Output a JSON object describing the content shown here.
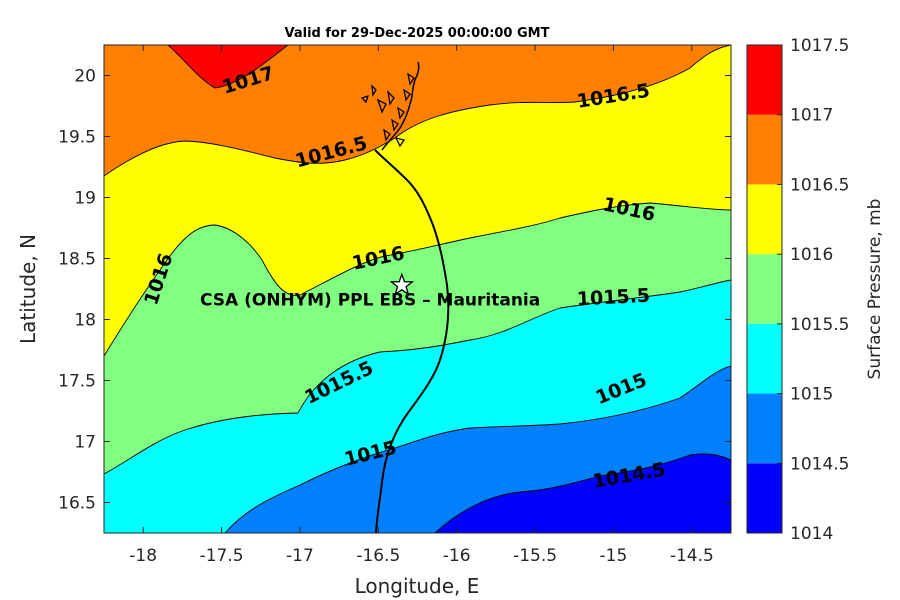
{
  "chart_data": {
    "type": "filled-contour",
    "title": "Valid for 29-Dec-2025 00:00:00 GMT",
    "xlabel": "Longitude, E",
    "ylabel": "Latitude, N",
    "xlim": [
      -18.25,
      -14.25
    ],
    "ylim": [
      16.25,
      20.25
    ],
    "xticks": [
      "-18",
      "-17.5",
      "-17",
      "-16.5",
      "-16",
      "-15.5",
      "-15",
      "-14.5"
    ],
    "yticks": [
      "16.5",
      "17",
      "17.5",
      "18",
      "18.5",
      "19",
      "19.5",
      "20"
    ],
    "colorbar": {
      "label": "Surface Pressure, mb",
      "levels": [
        "1014",
        "1014.5",
        "1015",
        "1015.5",
        "1016",
        "1016.5",
        "1017",
        "1017.5"
      ],
      "colors": [
        "#0000ff",
        "#0080ff",
        "#00ffff",
        "#80ff80",
        "#ffff00",
        "#ff8000",
        "#ff0000",
        "#800000"
      ]
    },
    "contour_labels": [
      {
        "text": "1017",
        "lon": -17.33,
        "lat": 19.96
      },
      {
        "text": "1016.5",
        "lon": -15.0,
        "lat": 19.83
      },
      {
        "text": "1016.5",
        "lon": -16.8,
        "lat": 19.37
      },
      {
        "text": "1016",
        "lon": -14.9,
        "lat": 18.9
      },
      {
        "text": "1016",
        "lon": -16.5,
        "lat": 18.5
      },
      {
        "text": "1016",
        "lon": -17.9,
        "lat": 18.33
      },
      {
        "text": "1015.5",
        "lon": -15.0,
        "lat": 18.18
      },
      {
        "text": "1015.5",
        "lon": -16.75,
        "lat": 17.48
      },
      {
        "text": "1015",
        "lon": -14.95,
        "lat": 17.43
      },
      {
        "text": "1015",
        "lon": -16.55,
        "lat": 16.9
      },
      {
        "text": "1014.5",
        "lon": -14.9,
        "lat": 16.72
      }
    ],
    "site": {
      "label": "CSA (ONHYM) PPL EBS  – Mauritania",
      "lon": -16.35,
      "lat": 18.28
    }
  }
}
